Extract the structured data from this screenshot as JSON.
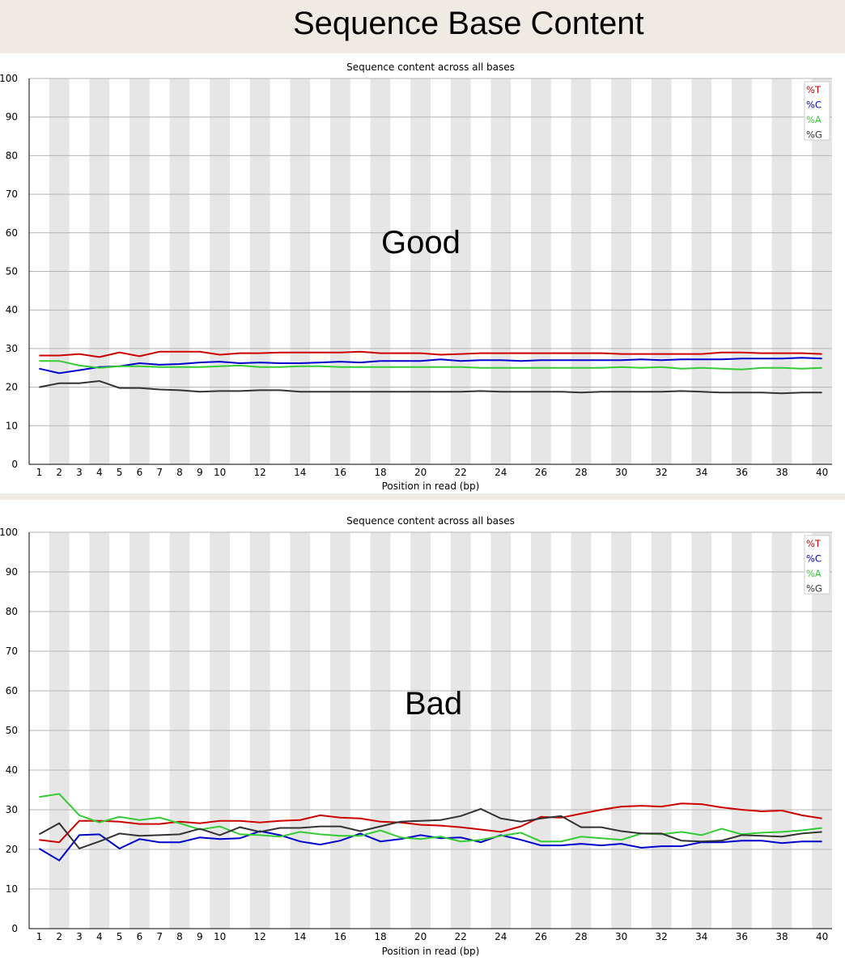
{
  "page": {
    "title": "Sequence Base Content"
  },
  "colors": {
    "T": "#cc0000",
    "C": "#0000cc",
    "A": "#33cc33",
    "G": "#333333",
    "band": "#e6e6e6",
    "grid": "#b4b4b4"
  },
  "chart_data": [
    {
      "type": "line",
      "title": "Sequence content across all bases",
      "xlabel": "Position in read (bp)",
      "ylabel": "",
      "ylim": [
        0,
        100
      ],
      "yticks": [
        "0",
        "10",
        "20",
        "30",
        "40",
        "50",
        "60",
        "70",
        "80",
        "90",
        "100"
      ],
      "x": [
        1,
        2,
        3,
        4,
        5,
        6,
        7,
        8,
        9,
        10,
        11,
        12,
        13,
        14,
        15,
        16,
        17,
        18,
        19,
        20,
        21,
        22,
        23,
        24,
        25,
        26,
        27,
        28,
        29,
        30,
        31,
        32,
        33,
        34,
        35,
        36,
        37,
        38,
        39,
        40
      ],
      "xtick_labels": [
        "1",
        "2",
        "3",
        "4",
        "5",
        "6",
        "7",
        "8",
        "9",
        "10",
        "",
        "12",
        "",
        "14",
        "",
        "16",
        "",
        "18",
        "",
        "20",
        "",
        "22",
        "",
        "24",
        "",
        "26",
        "",
        "28",
        "",
        "30",
        "",
        "32",
        "",
        "34",
        "",
        "36",
        "",
        "38",
        "",
        "40"
      ],
      "annotation": "Good",
      "legend_position": "top-right",
      "series": [
        {
          "name": "%T",
          "color_key": "T",
          "values": [
            28.2,
            28.2,
            28.6,
            27.8,
            29,
            28,
            29.2,
            29.2,
            29.2,
            28.4,
            28.8,
            28.8,
            29,
            29,
            29,
            29,
            29.2,
            28.8,
            28.8,
            28.8,
            28.4,
            28.6,
            28.8,
            28.8,
            28.8,
            28.8,
            28.8,
            28.8,
            28.8,
            28.6,
            28.6,
            28.6,
            28.6,
            28.6,
            29,
            29,
            28.8,
            28.8,
            28.8,
            28.6
          ]
        },
        {
          "name": "%C",
          "color_key": "C",
          "values": [
            24.8,
            23.6,
            24.4,
            25.2,
            25.4,
            26.2,
            25.8,
            26,
            26.4,
            26.6,
            26.2,
            26.4,
            26.2,
            26.2,
            26.4,
            26.6,
            26.4,
            26.8,
            26.8,
            26.8,
            27.2,
            26.8,
            27,
            27,
            26.8,
            27,
            27,
            27,
            27,
            27,
            27.2,
            27,
            27.2,
            27.2,
            27.2,
            27.4,
            27.4,
            27.4,
            27.6,
            27.4
          ]
        },
        {
          "name": "%A",
          "color_key": "A",
          "values": [
            26.8,
            26.8,
            25.6,
            25,
            25.4,
            25.4,
            25.2,
            25.2,
            25.2,
            25.4,
            25.6,
            25.2,
            25.2,
            25.4,
            25.4,
            25.2,
            25.2,
            25.2,
            25.2,
            25.2,
            25.2,
            25.2,
            25,
            25,
            25,
            25,
            25,
            25,
            25,
            25.2,
            25,
            25.2,
            24.8,
            25,
            24.8,
            24.6,
            25,
            25,
            24.8,
            25
          ]
        },
        {
          "name": "%G",
          "color_key": "G",
          "values": [
            20,
            21,
            21,
            21.6,
            19.8,
            19.8,
            19.4,
            19.2,
            18.8,
            19,
            19,
            19.2,
            19.2,
            18.8,
            18.8,
            18.8,
            18.8,
            18.8,
            18.8,
            18.8,
            18.8,
            18.8,
            19,
            18.8,
            18.8,
            18.8,
            18.8,
            18.6,
            18.8,
            18.8,
            18.8,
            18.8,
            19,
            18.8,
            18.6,
            18.6,
            18.6,
            18.4,
            18.6,
            18.6
          ]
        }
      ]
    },
    {
      "type": "line",
      "title": "Sequence content across all bases",
      "xlabel": "Position in read (bp)",
      "ylabel": "",
      "ylim": [
        0,
        100
      ],
      "yticks": [
        "0",
        "10",
        "20",
        "30",
        "40",
        "50",
        "60",
        "70",
        "80",
        "90",
        "100"
      ],
      "x": [
        1,
        2,
        3,
        4,
        5,
        6,
        7,
        8,
        9,
        10,
        11,
        12,
        13,
        14,
        15,
        16,
        17,
        18,
        19,
        20,
        21,
        22,
        23,
        24,
        25,
        26,
        27,
        28,
        29,
        30,
        31,
        32,
        33,
        34,
        35,
        36,
        37,
        38,
        39,
        40
      ],
      "xtick_labels": [
        "1",
        "2",
        "3",
        "4",
        "5",
        "6",
        "7",
        "8",
        "9",
        "10",
        "",
        "12",
        "",
        "14",
        "",
        "16",
        "",
        "18",
        "",
        "20",
        "",
        "22",
        "",
        "24",
        "",
        "26",
        "",
        "28",
        "",
        "30",
        "",
        "32",
        "",
        "34",
        "",
        "36",
        "",
        "38",
        "",
        "40"
      ],
      "annotation": "Bad",
      "legend_position": "top-right",
      "series": [
        {
          "name": "%T",
          "color_key": "T",
          "values": [
            22.4,
            21.8,
            27.2,
            27.2,
            27,
            26.4,
            26.4,
            27,
            26.6,
            27.2,
            27.2,
            26.8,
            27.2,
            27.4,
            28.6,
            28,
            27.8,
            27,
            26.8,
            26.2,
            26,
            25.6,
            25,
            24.4,
            25.8,
            28.2,
            28,
            29,
            30,
            30.8,
            31,
            30.8,
            31.6,
            31.4,
            30.6,
            30,
            29.6,
            29.8,
            28.6,
            27.8
          ]
        },
        {
          "name": "%C",
          "color_key": "C",
          "values": [
            20.2,
            17.2,
            23.6,
            23.8,
            20.2,
            22.6,
            21.8,
            21.8,
            23,
            22.6,
            22.8,
            24.6,
            23.6,
            22,
            21.2,
            22.2,
            24,
            22,
            22.6,
            23.6,
            22.8,
            23,
            21.8,
            23.6,
            22.4,
            21,
            21,
            21.4,
            21,
            21.4,
            20.4,
            20.8,
            20.8,
            21.8,
            21.8,
            22.2,
            22.2,
            21.6,
            22,
            22
          ]
        },
        {
          "name": "%A",
          "color_key": "A",
          "values": [
            33.2,
            34,
            28.6,
            26.8,
            28.2,
            27.4,
            28,
            26.6,
            25,
            25.8,
            23.8,
            23.6,
            23.2,
            24.4,
            23.8,
            23.4,
            23.4,
            24.8,
            23,
            22.6,
            23.2,
            22,
            22.4,
            23.4,
            24.2,
            22,
            22,
            23.2,
            22.8,
            22.4,
            24,
            23.8,
            24.4,
            23.6,
            25.2,
            23.8,
            24.2,
            24.4,
            24.8,
            25.4
          ]
        },
        {
          "name": "%G",
          "color_key": "G",
          "values": [
            23.8,
            26.6,
            20.2,
            22,
            24,
            23.4,
            23.6,
            23.8,
            25.2,
            23.6,
            25.6,
            24.4,
            25.4,
            25.4,
            25.8,
            25.8,
            24.6,
            25.8,
            27,
            27.2,
            27.4,
            28.4,
            30.2,
            27.8,
            27,
            27.8,
            28.4,
            25.6,
            25.6,
            24.6,
            24,
            24,
            22.2,
            22,
            22.2,
            23.6,
            23.4,
            23.2,
            24,
            24.4
          ]
        }
      ]
    }
  ]
}
